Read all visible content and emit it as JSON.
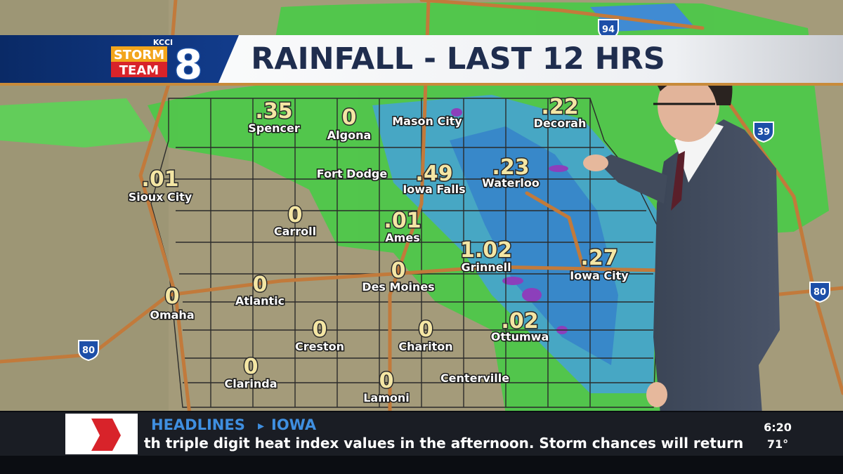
{
  "header": {
    "station": "KCCI",
    "brand_top": "STORM",
    "brand_bottom": "TEAM",
    "brand_number": "8",
    "title": "RAINFALL - LAST 12 HRS"
  },
  "map": {
    "locations": [
      {
        "name": "Spencer",
        "amount": ".35"
      },
      {
        "name": "Algona",
        "amount": "0"
      },
      {
        "name": "Mason City"
      },
      {
        "name": "Decorah",
        "amount": ".22"
      },
      {
        "name": "Sioux City",
        "amount": ".01"
      },
      {
        "name": "Fort Dodge"
      },
      {
        "name": "Iowa Falls",
        "amount": ".49"
      },
      {
        "name": "Waterloo",
        "amount": ".23"
      },
      {
        "name": "Carroll",
        "amount": "0"
      },
      {
        "name": "Ames",
        "amount": ".01"
      },
      {
        "name": "Grinnell",
        "amount": "1.02"
      },
      {
        "name": "Iowa City",
        "amount": ".27"
      },
      {
        "name": "Omaha",
        "amount": "0"
      },
      {
        "name": "Atlantic",
        "amount": "0"
      },
      {
        "name": "Des Moines",
        "amount": "0"
      },
      {
        "name": "Creston",
        "amount": "0"
      },
      {
        "name": "Chariton",
        "amount": "0"
      },
      {
        "name": "Ottumwa",
        "amount": ".02"
      },
      {
        "name": "Clarinda",
        "amount": "0"
      },
      {
        "name": "Lamoni",
        "amount": "0"
      },
      {
        "name": "Centerville"
      }
    ],
    "shields": [
      "94",
      "39",
      "80",
      "80"
    ]
  },
  "ticker": {
    "label": "HEADLINES",
    "topic": "IOWA",
    "text": "th triple digit heat index values in the afternoon. Storm chances will return",
    "time": "6:20",
    "temperature": "71°"
  }
}
